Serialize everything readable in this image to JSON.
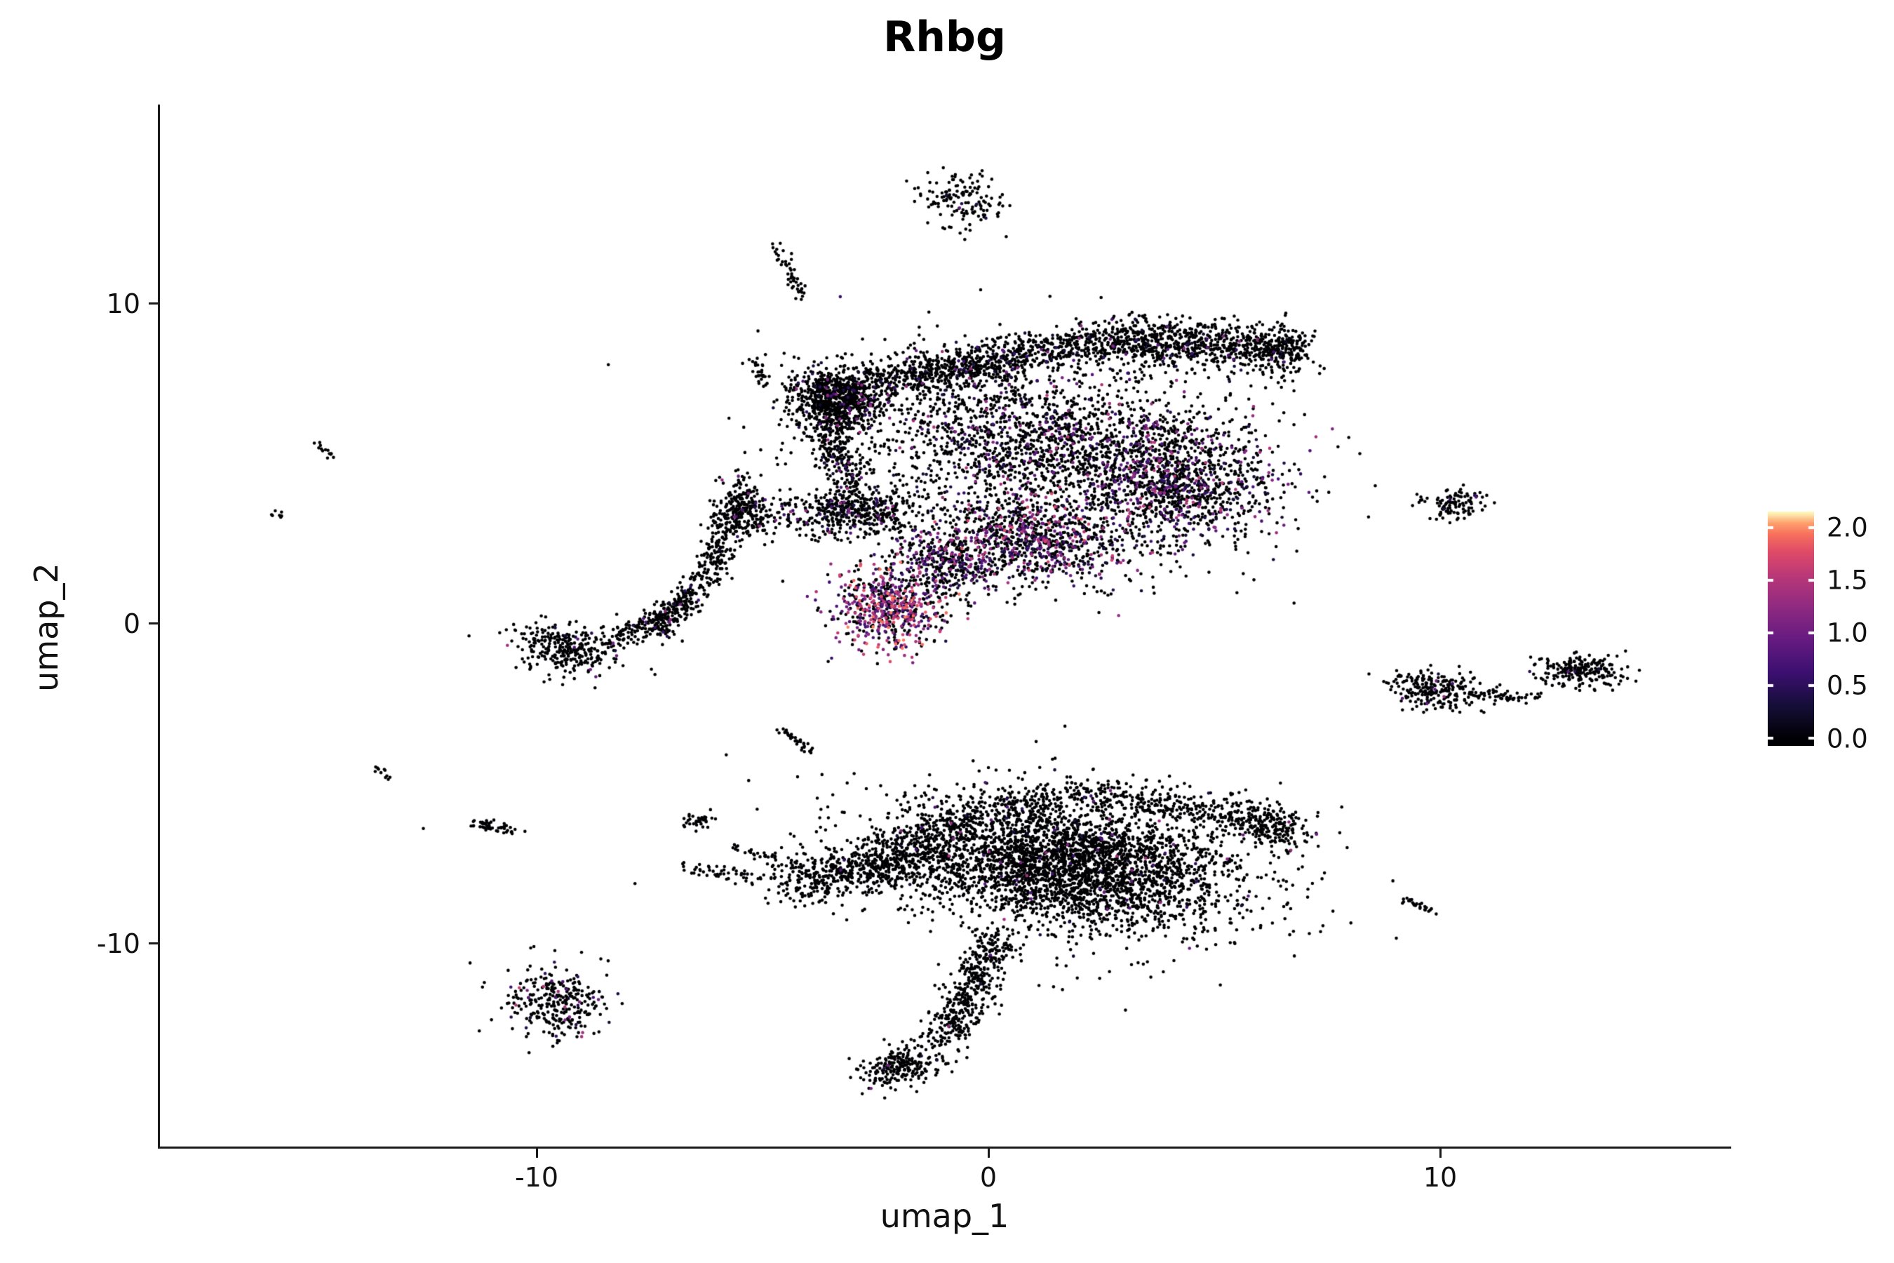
{
  "title": "Rhbg",
  "axes": {
    "x": {
      "label": "umap_1",
      "domain": [
        -18.33,
        16.4
      ],
      "ticks": [
        {
          "value": -10,
          "label": "-10"
        },
        {
          "value": 0,
          "label": "0"
        },
        {
          "value": 10,
          "label": "10"
        }
      ]
    },
    "y": {
      "label": "umap_2",
      "domain": [
        -16.34,
        16.23
      ],
      "ticks": [
        {
          "value": 10,
          "label": "10"
        },
        {
          "value": 0,
          "label": "0"
        },
        {
          "value": -10,
          "label": "-10"
        }
      ]
    }
  },
  "legend": {
    "domain": [
      -0.07,
      2.15
    ],
    "color_max": 2.15,
    "ticks": [
      {
        "value": 2.0,
        "label": "2.0"
      },
      {
        "value": 1.5,
        "label": "1.5"
      },
      {
        "value": 1.0,
        "label": "1.0"
      },
      {
        "value": 0.5,
        "label": "0.5"
      },
      {
        "value": 0.0,
        "label": "0.0"
      }
    ]
  },
  "colors": {
    "background": "#ffffff",
    "axis": "#1a1a1a",
    "colormap": [
      [
        0.0,
        "#000004"
      ],
      [
        0.14,
        "#140e36"
      ],
      [
        0.29,
        "#3b0f70"
      ],
      [
        0.43,
        "#641a80"
      ],
      [
        0.57,
        "#8c2981"
      ],
      [
        0.71,
        "#b73779"
      ],
      [
        0.82,
        "#de4968"
      ],
      [
        0.9,
        "#f7705c"
      ],
      [
        0.95,
        "#fe9f6d"
      ],
      [
        1.0,
        "#fcfdbf"
      ]
    ]
  },
  "chart_data": {
    "type": "scatter",
    "title": "Rhbg",
    "xlabel": "umap_1",
    "ylabel": "umap_2",
    "xlim": [
      -18.33,
      16.4
    ],
    "ylim": [
      -16.34,
      16.23
    ],
    "color_scale": {
      "label_values": [
        0.0,
        0.5,
        1.0,
        1.5,
        2.0
      ],
      "palette": "magma",
      "max": 2.15
    },
    "point_radius_px": 2.3,
    "clusters": [
      {
        "name": "top-islet",
        "type": "blob",
        "cx": -0.6,
        "cy": 13.3,
        "rx": 0.85,
        "ry": 0.7,
        "rot": -15,
        "n": 140,
        "expr_frac": 0.04,
        "vmax": 1.3
      },
      {
        "name": "upper-left-streak",
        "type": "streak",
        "x1": -4.7,
        "y1": 11.9,
        "x2": -4.1,
        "y2": 10.2,
        "w": 0.18,
        "n": 50,
        "expr_frac": 0
      },
      {
        "name": "upper-left-streak-2",
        "type": "streak",
        "x1": -5.3,
        "y1": 8.4,
        "x2": -4.9,
        "y2": 7.5,
        "w": 0.15,
        "n": 28,
        "expr_frac": 0
      },
      {
        "name": "band-left",
        "type": "streak",
        "x1": -3.3,
        "y1": 7.3,
        "x2": 2.6,
        "y2": 8.9,
        "w": 0.65,
        "n": 980,
        "expr_frac": 0.05,
        "vmax": 1.3
      },
      {
        "name": "band-right",
        "type": "streak",
        "x1": 2.6,
        "y1": 8.9,
        "x2": 6.5,
        "y2": 8.6,
        "w": 0.75,
        "n": 760,
        "expr_frac": 0.05,
        "vmax": 1.3
      },
      {
        "name": "band-right-tip",
        "type": "blob",
        "cx": 6.6,
        "cy": 8.5,
        "rx": 0.55,
        "ry": 0.65,
        "rot": 0,
        "n": 160,
        "expr_frac": 0.04,
        "vmax": 1.2
      },
      {
        "name": "upper-knot",
        "type": "blob",
        "cx": -3.4,
        "cy": 7.0,
        "rx": 0.8,
        "ry": 0.95,
        "rot": 10,
        "n": 760,
        "expr_frac": 0.06,
        "vmax": 1.3
      },
      {
        "name": "knot-tail",
        "type": "streak",
        "x1": -3.6,
        "y1": 6.1,
        "x2": -3.0,
        "y2": 4.3,
        "w": 0.45,
        "n": 190,
        "expr_frac": 0.06,
        "vmax": 1.2
      },
      {
        "name": "upper-halo",
        "type": "blob",
        "cx": 0.5,
        "cy": 5.5,
        "rx": 5.0,
        "ry": 3.2,
        "rot": -5,
        "n": 360,
        "expr_frac": 0.12,
        "vmax": 1.4
      },
      {
        "name": "mid-scatter",
        "type": "blob",
        "cx": 1.4,
        "cy": 5.7,
        "rx": 4.1,
        "ry": 2.1,
        "rot": -8,
        "n": 1750,
        "expr_frac": 0.17,
        "vmax": 1.5
      },
      {
        "name": "mid-right-dense",
        "type": "blob",
        "cx": 4.2,
        "cy": 4.3,
        "rx": 1.9,
        "ry": 1.6,
        "rot": -20,
        "n": 950,
        "expr_frac": 0.28,
        "vmax": 1.6
      },
      {
        "name": "lower-mid",
        "type": "blob",
        "cx": 0.9,
        "cy": 2.6,
        "rx": 2.2,
        "ry": 1.25,
        "rot": -5,
        "n": 950,
        "expr_frac": 0.38,
        "vmax": 1.8
      },
      {
        "name": "mid-knot",
        "type": "blob",
        "cx": -3.0,
        "cy": 3.5,
        "rx": 1.3,
        "ry": 0.65,
        "rot": 5,
        "n": 480,
        "expr_frac": 0.1,
        "vmax": 1.4
      },
      {
        "name": "left-arm-upper",
        "type": "streak",
        "x1": -5.4,
        "y1": 4.6,
        "x2": -6.1,
        "y2": 1.8,
        "w": 0.42,
        "n": 230,
        "expr_frac": 0.04,
        "vmax": 1.2
      },
      {
        "name": "left-arm-lower",
        "type": "streak",
        "x1": -6.1,
        "y1": 1.8,
        "x2": -7.4,
        "y2": -0.4,
        "w": 0.4,
        "n": 200,
        "expr_frac": 0.04,
        "vmax": 1.2
      },
      {
        "name": "left-arm-blob",
        "type": "blob",
        "cx": -5.3,
        "cy": 3.4,
        "rx": 0.5,
        "ry": 0.75,
        "rot": 15,
        "n": 160,
        "expr_frac": 0.05,
        "vmax": 1.2
      },
      {
        "name": "hotspot",
        "type": "blob",
        "cx": -2.2,
        "cy": 0.5,
        "rx": 1.1,
        "ry": 1.1,
        "rot": -10,
        "n": 620,
        "expr_frac": 0.6,
        "vmin": 0.3,
        "vmax": 2.0,
        "pow": 0.9
      },
      {
        "name": "hotspot-bridge",
        "type": "blob",
        "cx": -0.9,
        "cy": 1.9,
        "rx": 1.2,
        "ry": 0.8,
        "rot": -15,
        "n": 320,
        "expr_frac": 0.35,
        "vmax": 1.7
      },
      {
        "name": "west-blob",
        "type": "blob",
        "cx": -9.3,
        "cy": -0.8,
        "rx": 1.1,
        "ry": 0.7,
        "rot": -15,
        "n": 300,
        "expr_frac": 0.07,
        "vmax": 1.5
      },
      {
        "name": "west-arm",
        "type": "streak",
        "x1": -8.4,
        "y1": -0.6,
        "x2": -6.6,
        "y2": 0.7,
        "w": 0.35,
        "n": 170,
        "expr_frac": 0.03,
        "vmax": 1.2
      },
      {
        "name": "far-west-streak-1",
        "type": "streak",
        "x1": -14.9,
        "y1": 5.7,
        "x2": -14.5,
        "y2": 5.2,
        "w": 0.1,
        "n": 14,
        "expr_frac": 0
      },
      {
        "name": "far-west-dots",
        "type": "blob",
        "cx": -15.8,
        "cy": 3.4,
        "rx": 0.18,
        "ry": 0.12,
        "rot": 0,
        "n": 7,
        "expr_frac": 0
      },
      {
        "name": "west-streak-3",
        "type": "streak",
        "x1": -13.5,
        "y1": -4.5,
        "x2": -13.2,
        "y2": -4.9,
        "w": 0.1,
        "n": 11,
        "expr_frac": 0
      },
      {
        "name": "west-streak-4",
        "type": "streak",
        "x1": -11.4,
        "y1": -6.2,
        "x2": -10.4,
        "y2": -6.5,
        "w": 0.14,
        "n": 50,
        "expr_frac": 0
      },
      {
        "name": "east-top",
        "type": "blob",
        "cx": 10.4,
        "cy": 3.7,
        "rx": 0.62,
        "ry": 0.48,
        "rot": 0,
        "n": 100,
        "expr_frac": 0.03,
        "vmax": 1.2
      },
      {
        "name": "east-top-dots",
        "type": "blob",
        "cx": 9.6,
        "cy": 3.9,
        "rx": 0.25,
        "ry": 0.12,
        "rot": 0,
        "n": 9,
        "expr_frac": 0
      },
      {
        "name": "east-mid",
        "type": "blob",
        "cx": 9.9,
        "cy": -2.1,
        "rx": 0.95,
        "ry": 0.55,
        "rot": -10,
        "n": 240,
        "expr_frac": 0.05,
        "vmax": 1.4
      },
      {
        "name": "east-mid-trail",
        "type": "streak",
        "x1": 10.9,
        "y1": -2.2,
        "x2": 12.2,
        "y2": -2.3,
        "w": 0.18,
        "n": 45,
        "expr_frac": 0
      },
      {
        "name": "east-far",
        "type": "blob",
        "cx": 13.1,
        "cy": -1.45,
        "rx": 0.85,
        "ry": 0.45,
        "rot": -5,
        "n": 220,
        "expr_frac": 0.02,
        "vmax": 1.2
      },
      {
        "name": "east-low-streak",
        "type": "streak",
        "x1": 9.2,
        "y1": -8.6,
        "x2": 9.8,
        "y2": -8.95,
        "w": 0.12,
        "n": 26,
        "expr_frac": 0
      },
      {
        "name": "south-body",
        "type": "blob",
        "cx": 1.9,
        "cy": -7.5,
        "rx": 3.3,
        "ry": 1.75,
        "rot": -12,
        "n": 3200,
        "expr_frac": 0.02,
        "vmax": 1.4
      },
      {
        "name": "south-halo",
        "type": "blob",
        "cx": 1.0,
        "cy": -7.8,
        "rx": 4.5,
        "ry": 2.3,
        "rot": -10,
        "n": 350,
        "expr_frac": 0.015,
        "vmax": 1.2
      },
      {
        "name": "south-west-wing",
        "type": "streak",
        "x1": -4.4,
        "y1": -8.1,
        "x2": -1.2,
        "y2": -7.2,
        "w": 0.8,
        "n": 600,
        "expr_frac": 0.015,
        "vmax": 1.2
      },
      {
        "name": "south-top-edge",
        "type": "streak",
        "x1": 2.1,
        "y1": -5.3,
        "x2": 6.4,
        "y2": -6.1,
        "w": 0.55,
        "n": 320,
        "expr_frac": 0.02,
        "vmax": 1.2
      },
      {
        "name": "south-upper-diag",
        "type": "streak",
        "x1": -2.6,
        "y1": -6.9,
        "x2": 2.0,
        "y2": -5.3,
        "w": 0.55,
        "n": 280,
        "expr_frac": 0.02,
        "vmax": 1.2
      },
      {
        "name": "south-right-tip",
        "type": "blob",
        "cx": 6.3,
        "cy": -6.4,
        "rx": 0.7,
        "ry": 0.5,
        "rot": 0,
        "n": 160,
        "expr_frac": 0.02,
        "vmax": 1.2
      },
      {
        "name": "south-tail",
        "type": "streak",
        "x1": 0.2,
        "y1": -9.9,
        "x2": -1.0,
        "y2": -13.0,
        "w": 0.55,
        "n": 430,
        "expr_frac": 0.015,
        "vmax": 1.2
      },
      {
        "name": "south-foot",
        "type": "blob",
        "cx": -1.9,
        "cy": -13.8,
        "rx": 0.85,
        "ry": 0.5,
        "rot": 20,
        "n": 240,
        "expr_frac": 0.015,
        "vmax": 1.2
      },
      {
        "name": "south-left-arm",
        "type": "streak",
        "x1": -6.9,
        "y1": -7.6,
        "x2": -4.5,
        "y2": -8.0,
        "w": 0.22,
        "n": 55,
        "expr_frac": 0
      },
      {
        "name": "south-left-islet",
        "type": "blob",
        "cx": -6.4,
        "cy": -6.2,
        "rx": 0.3,
        "ry": 0.22,
        "rot": 0,
        "n": 35,
        "expr_frac": 0
      },
      {
        "name": "south-left-dots",
        "type": "streak",
        "x1": -5.7,
        "y1": -6.9,
        "x2": -4.7,
        "y2": -7.3,
        "w": 0.18,
        "n": 26,
        "expr_frac": 0
      },
      {
        "name": "southwest-blob",
        "type": "blob",
        "cx": -9.5,
        "cy": -11.8,
        "rx": 1.0,
        "ry": 1.1,
        "rot": 0,
        "n": 300,
        "expr_frac": 0.1,
        "vmax": 1.7
      },
      {
        "name": "mid-diag-dash",
        "type": "streak",
        "x1": -4.6,
        "y1": -3.3,
        "x2": -3.9,
        "y2": -4.0,
        "w": 0.12,
        "n": 34,
        "expr_frac": 0
      }
    ],
    "singles": [
      [
        1.7,
        -3.2
      ],
      [
        -5.3,
        -4.9
      ],
      [
        -3.7,
        -5.8
      ],
      [
        -12.5,
        -6.4
      ],
      [
        -0.4,
        12.3
      ],
      [
        0.4,
        12.1
      ],
      [
        -8.7,
        -2.0
      ],
      [
        7.3,
        -5.9
      ],
      [
        -0.2,
        -4.6
      ],
      [
        2.5,
        10.2
      ]
    ]
  }
}
